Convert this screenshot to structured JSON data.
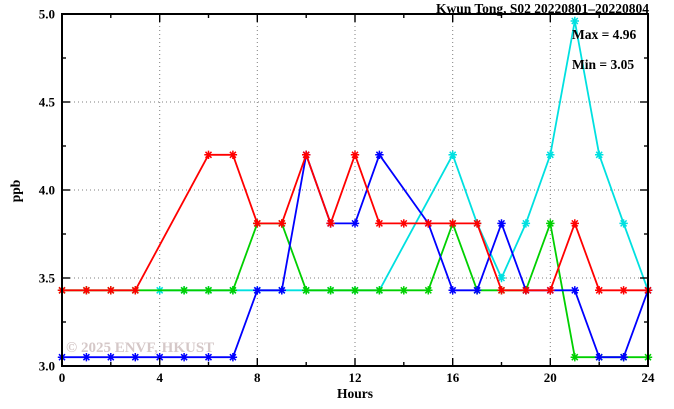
{
  "chart_data": {
    "type": "line",
    "title": "Kwun Tong, S02 20220801–20220804",
    "xlabel": "Hours",
    "ylabel": "ppb",
    "xlim": [
      0,
      24
    ],
    "ylim": [
      3.0,
      5.0
    ],
    "xticks_major": [
      0,
      4,
      8,
      12,
      16,
      20,
      24
    ],
    "xticks_minor": [
      2,
      6,
      10,
      14,
      18,
      22
    ],
    "yticks_major": [
      3.0,
      3.5,
      4.0,
      4.5,
      5.0
    ],
    "yticks_minor": [
      3.25,
      3.75,
      4.25,
      4.75
    ],
    "grid": "dotted gray lines at interior major ticks",
    "legend_position": "none",
    "annotations": {
      "max_label": "Max = 4.96",
      "min_label": "Min = 3.05"
    },
    "watermark": "© 2025 ENVF, HKUST",
    "x_hours": [
      0,
      1,
      2,
      3,
      4,
      5,
      6,
      7,
      8,
      9,
      10,
      11,
      12,
      13,
      14,
      15,
      16,
      17,
      18,
      19,
      20,
      21,
      22,
      23,
      24
    ],
    "series": [
      {
        "name": "cyan-series",
        "color": "#00e0e0",
        "values": [
          null,
          null,
          null,
          null,
          3.43,
          3.43,
          3.43,
          3.43,
          3.43,
          3.43,
          3.43,
          3.43,
          3.43,
          3.43,
          null,
          null,
          4.2,
          3.81,
          3.5,
          3.81,
          4.2,
          4.96,
          4.2,
          3.81,
          3.43
        ]
      },
      {
        "name": "green-series",
        "color": "#00d000",
        "values": [
          3.43,
          3.43,
          3.43,
          3.43,
          null,
          3.43,
          3.43,
          3.43,
          3.81,
          3.81,
          3.43,
          3.43,
          3.43,
          3.43,
          3.43,
          3.43,
          3.81,
          3.43,
          3.43,
          3.43,
          3.81,
          3.05,
          3.05,
          3.05,
          3.05
        ]
      },
      {
        "name": "blue-series",
        "color": "#0000ff",
        "values": [
          3.05,
          3.05,
          3.05,
          3.05,
          3.05,
          3.05,
          3.05,
          3.05,
          3.43,
          3.43,
          4.2,
          3.81,
          3.81,
          4.2,
          null,
          3.81,
          3.43,
          3.43,
          3.81,
          3.43,
          3.43,
          3.43,
          3.05,
          3.05,
          3.43
        ]
      },
      {
        "name": "red-series",
        "color": "#ff0000",
        "values": [
          3.43,
          3.43,
          3.43,
          3.43,
          null,
          null,
          4.2,
          4.2,
          3.81,
          3.81,
          4.2,
          3.81,
          4.2,
          3.81,
          3.81,
          3.81,
          3.81,
          3.81,
          3.43,
          3.43,
          3.43,
          3.81,
          3.43,
          3.43,
          3.43
        ]
      }
    ]
  }
}
